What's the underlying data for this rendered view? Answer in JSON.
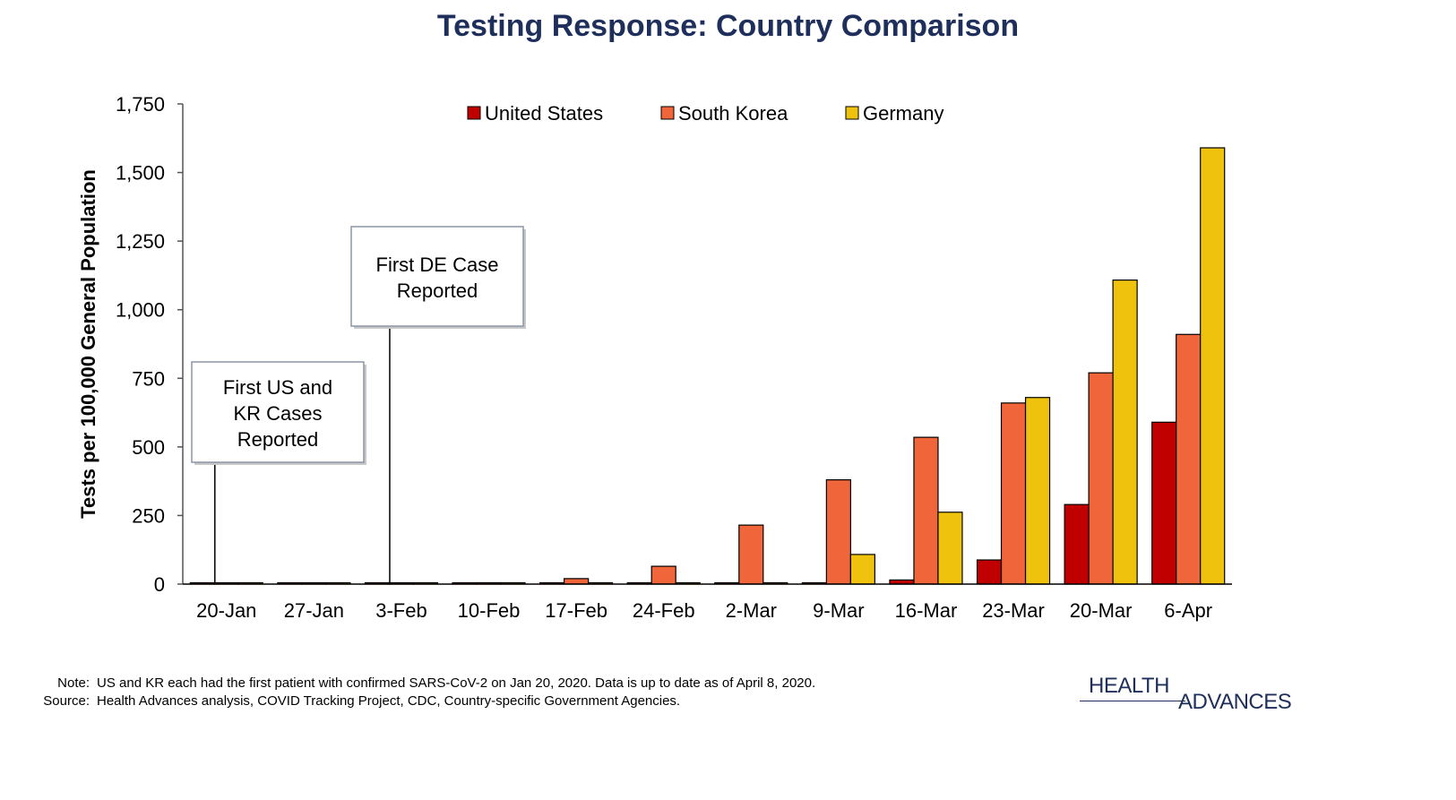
{
  "chart_data": {
    "type": "bar",
    "title": "Testing Response: Country Comparison",
    "ylabel": "Tests per 100,000 General Population",
    "xlabel": "",
    "ylim": [
      0,
      1750
    ],
    "yticks": [
      0,
      250,
      500,
      750,
      1000,
      1250,
      1500,
      1750
    ],
    "ytick_labels": [
      "0",
      "250",
      "500",
      "750",
      "1,000",
      "1,250",
      "1,500",
      "1,750"
    ],
    "categories": [
      "20-Jan",
      "27-Jan",
      "3-Feb",
      "10-Feb",
      "17-Feb",
      "24-Feb",
      "2-Mar",
      "9-Mar",
      "16-Mar",
      "23-Mar",
      "20-Mar",
      "6-Apr"
    ],
    "series": [
      {
        "name": "United States",
        "color": "#c00000",
        "values": [
          0,
          0,
          0,
          0,
          0,
          0,
          0,
          1,
          15,
          88,
          290,
          590
        ]
      },
      {
        "name": "South Korea",
        "color": "#f0663a",
        "values": [
          1,
          2,
          2,
          5,
          20,
          65,
          215,
          380,
          535,
          660,
          770,
          910
        ]
      },
      {
        "name": "Germany",
        "color": "#efc30d",
        "values": [
          0,
          0,
          0,
          0,
          0,
          0,
          0,
          108,
          262,
          680,
          1108,
          1590
        ]
      }
    ],
    "legend_position": "top-center",
    "grid": false,
    "annotations": [
      {
        "text_lines": [
          "First US and",
          "KR Cases",
          "Reported"
        ],
        "category": "20-Jan"
      },
      {
        "text_lines": [
          "First DE Case",
          "Reported"
        ],
        "category": "3-Feb"
      }
    ]
  },
  "footnote": {
    "note_label": "Note:",
    "note_text": "US and KR each had the first patient with confirmed SARS-CoV-2 on Jan 20, 2020. Data is up to date as of April 8, 2020.",
    "source_label": "Source:",
    "source_text": "Health Advances analysis, COVID Tracking Project, CDC, Country-specific Government Agencies."
  },
  "logo": {
    "line1": "HEALTH",
    "line2": "ADVANCES"
  }
}
